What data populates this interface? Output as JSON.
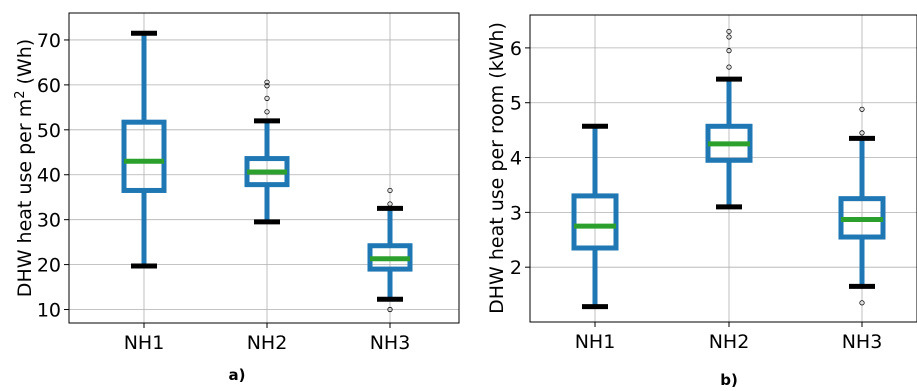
{
  "chart_data": [
    {
      "type": "box",
      "panel_label": "a)",
      "ylabel_main": "DHW heat use per m",
      "ylabel_sup": "2",
      "ylabel_unit": " (Wh)",
      "categories": [
        "NH1",
        "NH2",
        "NH3"
      ],
      "yticks": [
        10,
        20,
        30,
        40,
        50,
        60,
        70
      ],
      "ylim": [
        7,
        76
      ],
      "grid": true,
      "boxes": [
        {
          "whisker_low": 19.7,
          "q1": 36.5,
          "median": 43.0,
          "q3": 51.7,
          "whisker_high": 71.5,
          "outliers": []
        },
        {
          "whisker_low": 29.5,
          "q1": 37.8,
          "median": 40.6,
          "q3": 43.6,
          "whisker_high": 52.0,
          "outliers": [
            54.0,
            57.0,
            59.8,
            60.6
          ]
        },
        {
          "whisker_low": 12.3,
          "q1": 19.0,
          "median": 21.3,
          "q3": 24.2,
          "whisker_high": 32.5,
          "outliers": [
            10.0,
            33.5,
            36.5
          ]
        }
      ]
    },
    {
      "type": "box",
      "panel_label": "b)",
      "ylabel_main": "DHW heat use per room (kWh)",
      "categories": [
        "NH1",
        "NH2",
        "NH3"
      ],
      "yticks": [
        2,
        3,
        4,
        5,
        6
      ],
      "ylim": [
        1.0,
        6.6
      ],
      "grid": true,
      "boxes": [
        {
          "whisker_low": 1.28,
          "q1": 2.35,
          "median": 2.75,
          "q3": 3.3,
          "whisker_high": 4.57,
          "outliers": []
        },
        {
          "whisker_low": 3.1,
          "q1": 3.95,
          "median": 4.25,
          "q3": 4.57,
          "whisker_high": 5.43,
          "outliers": [
            5.65,
            5.95,
            6.2,
            6.3
          ]
        },
        {
          "whisker_low": 1.65,
          "q1": 2.55,
          "median": 2.87,
          "q3": 3.25,
          "whisker_high": 4.35,
          "outliers": [
            1.35,
            4.45,
            4.88
          ]
        }
      ]
    }
  ],
  "colors": {
    "box": "#1f77b4",
    "median": "#2ca02c",
    "cap": "#000000",
    "grid": "#b0b0b0"
  }
}
